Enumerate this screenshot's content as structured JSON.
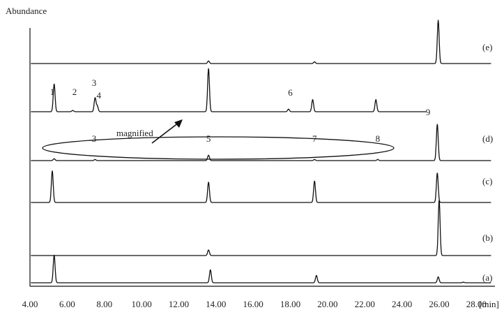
{
  "chart_data": {
    "type": "line",
    "title": "",
    "ylabel": "Abundance",
    "xlabel": "[min]",
    "xlim": [
      4.0,
      29.0
    ],
    "x_ticks": [
      "4.00",
      "6.00",
      "8.00",
      "10.00",
      "12.00",
      "14.00",
      "16.00",
      "18.00",
      "20.00",
      "22.00",
      "24.00",
      "26.00",
      "28.00"
    ],
    "series": [
      {
        "name": "(e)",
        "end": 28.8,
        "peaks": [
          [
            13.6,
            0.06
          ],
          [
            19.3,
            0.04
          ],
          [
            25.95,
            1.0
          ]
        ]
      },
      {
        "name": "",
        "end": 25.3,
        "peaks": [
          [
            5.3,
            0.64
          ],
          [
            6.3,
            0.03
          ],
          [
            7.5,
            0.32
          ],
          [
            7.62,
            0.13
          ],
          [
            13.6,
            1.0
          ],
          [
            17.9,
            0.06
          ],
          [
            19.2,
            0.28
          ],
          [
            22.6,
            0.28
          ]
        ]
      },
      {
        "name": "(d)",
        "end": 28.8,
        "peaks": [
          [
            5.3,
            0.05
          ],
          [
            7.5,
            0.03
          ],
          [
            13.6,
            0.15
          ],
          [
            19.3,
            0.03
          ],
          [
            22.7,
            0.03
          ],
          [
            25.9,
            1.0
          ]
        ]
      },
      {
        "name": "(c)",
        "end": 28.8,
        "peaks": [
          [
            5.2,
            0.87
          ],
          [
            13.6,
            0.56
          ],
          [
            19.3,
            0.59
          ],
          [
            25.9,
            0.81
          ]
        ]
      },
      {
        "name": "(b)",
        "end": 28.8,
        "peaks": [
          [
            13.6,
            0.1
          ],
          [
            26.0,
            1.0
          ]
        ]
      },
      {
        "name": "(a)",
        "end": 28.8,
        "peaks": [
          [
            5.3,
            0.94
          ],
          [
            13.7,
            0.44
          ],
          [
            19.4,
            0.25
          ],
          [
            25.95,
            0.2
          ],
          [
            27.3,
            0.02
          ]
        ]
      }
    ],
    "peak_labels": [
      {
        "text": "1",
        "x": 5.2
      },
      {
        "text": "2",
        "x": 6.4
      },
      {
        "text": "3",
        "x": 7.45
      },
      {
        "text": "4",
        "x": 7.7
      },
      {
        "text": "3",
        "x": 7.45
      },
      {
        "text": "5",
        "x": 13.6
      },
      {
        "text": "6",
        "x": 18.0
      },
      {
        "text": "7",
        "x": 19.3
      },
      {
        "text": "8",
        "x": 22.7
      },
      {
        "text": "9",
        "x": 25.4
      }
    ],
    "annotations": [
      {
        "text": "magnified",
        "type": "arrow-from-ellipse"
      }
    ]
  }
}
